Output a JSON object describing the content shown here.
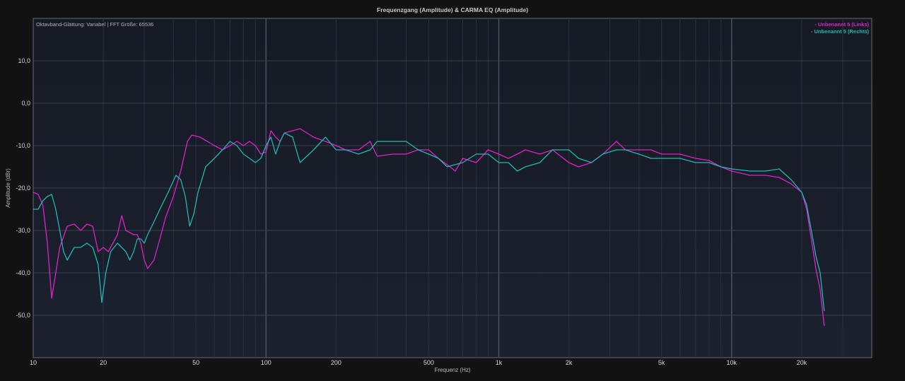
{
  "chart_data": {
    "type": "line",
    "title": "Frequenzgang (Amplitude) & CARMA EQ (Amplitude)",
    "subtitle": "Oktavband-Glättung: Variabel | FFT Größe: 65536",
    "xlabel": "Frequenz (Hz)",
    "ylabel": "Amplitude (dBr)",
    "x_scale": "log",
    "xlim": [
      10,
      40000
    ],
    "ylim": [
      -60,
      20
    ],
    "x_ticks": [
      10,
      20,
      50,
      100,
      200,
      500,
      1000,
      2000,
      5000,
      10000,
      20000
    ],
    "x_tick_labels": [
      "10",
      "20",
      "50",
      "100",
      "200",
      "500",
      "1k",
      "2k",
      "5k",
      "10k",
      "20k"
    ],
    "y_ticks": [
      10,
      0,
      -10,
      -20,
      -30,
      -40,
      -50
    ],
    "y_tick_labels": [
      "10,0",
      "0,0",
      "-10,0",
      "-20,0",
      "-30,0",
      "-40,0",
      "-50,0"
    ],
    "grid": true,
    "legend_position": "top-right",
    "series": [
      {
        "name": "- Unbenannt 5 (Links)",
        "color": "#e020c8",
        "points": [
          [
            10,
            -21
          ],
          [
            10.5,
            -21.5
          ],
          [
            11,
            -24
          ],
          [
            11.5,
            -33
          ],
          [
            12,
            -46
          ],
          [
            12.5,
            -40
          ],
          [
            13,
            -34
          ],
          [
            14,
            -29
          ],
          [
            15,
            -28.5
          ],
          [
            16,
            -30
          ],
          [
            17,
            -28.5
          ],
          [
            18,
            -29
          ],
          [
            19,
            -35
          ],
          [
            20,
            -34
          ],
          [
            21,
            -35
          ],
          [
            22,
            -33
          ],
          [
            23,
            -31
          ],
          [
            24,
            -26.5
          ],
          [
            25,
            -30
          ],
          [
            26,
            -30.5
          ],
          [
            27,
            -31
          ],
          [
            28,
            -31
          ],
          [
            29,
            -33
          ],
          [
            30,
            -37
          ],
          [
            31,
            -39
          ],
          [
            32,
            -38
          ],
          [
            33,
            -37
          ],
          [
            35,
            -32
          ],
          [
            37,
            -27
          ],
          [
            40,
            -22
          ],
          [
            43,
            -16
          ],
          [
            46,
            -9
          ],
          [
            48,
            -7.5
          ],
          [
            52,
            -8
          ],
          [
            56,
            -9
          ],
          [
            60,
            -10
          ],
          [
            65,
            -11
          ],
          [
            70,
            -10
          ],
          [
            75,
            -9
          ],
          [
            80,
            -10
          ],
          [
            85,
            -9
          ],
          [
            90,
            -10
          ],
          [
            95,
            -12
          ],
          [
            100,
            -11.5
          ],
          [
            105,
            -6.5
          ],
          [
            110,
            -8
          ],
          [
            115,
            -9
          ],
          [
            120,
            -7
          ],
          [
            130,
            -6.5
          ],
          [
            140,
            -6
          ],
          [
            160,
            -8
          ],
          [
            180,
            -9
          ],
          [
            200,
            -10
          ],
          [
            220,
            -11
          ],
          [
            250,
            -11
          ],
          [
            280,
            -9
          ],
          [
            300,
            -12.5
          ],
          [
            350,
            -12
          ],
          [
            400,
            -12
          ],
          [
            450,
            -11
          ],
          [
            500,
            -11
          ],
          [
            550,
            -13
          ],
          [
            600,
            -14.5
          ],
          [
            650,
            -16
          ],
          [
            700,
            -13
          ],
          [
            800,
            -14
          ],
          [
            900,
            -11
          ],
          [
            1000,
            -12
          ],
          [
            1100,
            -13
          ],
          [
            1200,
            -12
          ],
          [
            1300,
            -11
          ],
          [
            1500,
            -12
          ],
          [
            1700,
            -11
          ],
          [
            2000,
            -14
          ],
          [
            2200,
            -15
          ],
          [
            2500,
            -14
          ],
          [
            2800,
            -12
          ],
          [
            3200,
            -9
          ],
          [
            3500,
            -11
          ],
          [
            4000,
            -11
          ],
          [
            4500,
            -11
          ],
          [
            5000,
            -12
          ],
          [
            6000,
            -12
          ],
          [
            7000,
            -13
          ],
          [
            8000,
            -13.5
          ],
          [
            9000,
            -15
          ],
          [
            10000,
            -16
          ],
          [
            12000,
            -17
          ],
          [
            14000,
            -17
          ],
          [
            16000,
            -17.5
          ],
          [
            18000,
            -19
          ],
          [
            20000,
            -21
          ],
          [
            21000,
            -25
          ],
          [
            22000,
            -32
          ],
          [
            23000,
            -39
          ],
          [
            24000,
            -44
          ],
          [
            25000,
            -52.5
          ]
        ]
      },
      {
        "name": "- Unbenannt 5 (Rechts)",
        "color": "#20b8b0",
        "points": [
          [
            10,
            -25
          ],
          [
            10.5,
            -25
          ],
          [
            11,
            -23
          ],
          [
            11.5,
            -22
          ],
          [
            12,
            -21.5
          ],
          [
            12.5,
            -25
          ],
          [
            13,
            -30
          ],
          [
            13.5,
            -35
          ],
          [
            14,
            -37
          ],
          [
            15,
            -34
          ],
          [
            16,
            -34
          ],
          [
            17,
            -33
          ],
          [
            18,
            -34
          ],
          [
            19,
            -38
          ],
          [
            19.7,
            -47
          ],
          [
            20.5,
            -40
          ],
          [
            21.5,
            -35
          ],
          [
            23,
            -33
          ],
          [
            25,
            -35
          ],
          [
            26,
            -37
          ],
          [
            27,
            -35
          ],
          [
            28,
            -32
          ],
          [
            29,
            -32
          ],
          [
            30,
            -33
          ],
          [
            31,
            -31
          ],
          [
            33,
            -28
          ],
          [
            35,
            -25
          ],
          [
            38,
            -21
          ],
          [
            41,
            -17
          ],
          [
            43,
            -18
          ],
          [
            45,
            -22
          ],
          [
            47,
            -29
          ],
          [
            49,
            -26
          ],
          [
            51,
            -21
          ],
          [
            53,
            -18
          ],
          [
            55,
            -15
          ],
          [
            60,
            -13
          ],
          [
            65,
            -11
          ],
          [
            70,
            -9
          ],
          [
            75,
            -10
          ],
          [
            80,
            -12
          ],
          [
            85,
            -13
          ],
          [
            90,
            -14
          ],
          [
            95,
            -13
          ],
          [
            100,
            -10
          ],
          [
            105,
            -8
          ],
          [
            110,
            -12
          ],
          [
            115,
            -9
          ],
          [
            120,
            -7
          ],
          [
            130,
            -8
          ],
          [
            140,
            -14
          ],
          [
            160,
            -11
          ],
          [
            180,
            -8
          ],
          [
            200,
            -11
          ],
          [
            220,
            -11
          ],
          [
            250,
            -12
          ],
          [
            280,
            -11
          ],
          [
            300,
            -9
          ],
          [
            350,
            -9
          ],
          [
            400,
            -9
          ],
          [
            450,
            -11
          ],
          [
            500,
            -12
          ],
          [
            550,
            -13
          ],
          [
            600,
            -15
          ],
          [
            700,
            -14
          ],
          [
            800,
            -12
          ],
          [
            900,
            -12
          ],
          [
            1000,
            -14
          ],
          [
            1100,
            -14
          ],
          [
            1200,
            -16
          ],
          [
            1300,
            -15
          ],
          [
            1500,
            -14
          ],
          [
            1700,
            -11
          ],
          [
            2000,
            -11
          ],
          [
            2200,
            -13
          ],
          [
            2500,
            -14
          ],
          [
            2800,
            -12
          ],
          [
            3200,
            -11
          ],
          [
            3500,
            -11
          ],
          [
            4000,
            -12
          ],
          [
            4500,
            -13
          ],
          [
            5000,
            -13
          ],
          [
            6000,
            -13
          ],
          [
            7000,
            -14
          ],
          [
            8000,
            -14
          ],
          [
            9000,
            -15
          ],
          [
            10000,
            -15.5
          ],
          [
            12000,
            -16
          ],
          [
            14000,
            -16
          ],
          [
            16000,
            -15.5
          ],
          [
            18000,
            -18
          ],
          [
            20000,
            -21
          ],
          [
            21000,
            -24
          ],
          [
            22000,
            -30
          ],
          [
            23000,
            -36
          ],
          [
            24000,
            -40
          ],
          [
            25000,
            -49
          ]
        ]
      }
    ]
  }
}
